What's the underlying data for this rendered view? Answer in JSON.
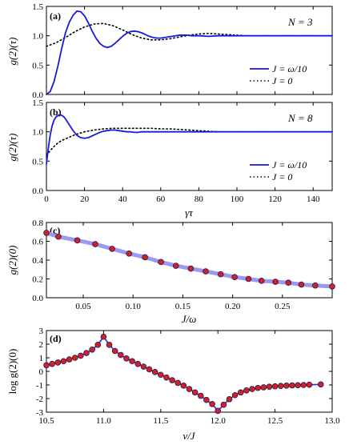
{
  "chart_data": [
    {
      "type": "line",
      "panel_label": "(a)",
      "annotation": "N = 3",
      "ylabel": "g(2)(τ)",
      "xlim": [
        0,
        150
      ],
      "ylim": [
        0,
        1.5
      ],
      "xticks": [
        0,
        20,
        40,
        60,
        80,
        100,
        120,
        140
      ],
      "yticks": [
        0.0,
        0.5,
        1.0,
        1.5
      ],
      "ytick_labels": [
        "0.0",
        "0.5",
        "1.0",
        "1.5"
      ],
      "legend_position": "lower-right",
      "series": [
        {
          "name": "J = ω/10",
          "color": "#1a1adb",
          "style": "solid",
          "x": [
            0,
            2,
            4,
            6,
            8,
            10,
            12,
            14,
            16,
            18,
            20,
            22,
            24,
            26,
            28,
            30,
            32,
            34,
            36,
            38,
            40,
            42,
            44,
            46,
            48,
            50,
            52,
            54,
            56,
            58,
            60,
            62,
            64,
            66,
            68,
            70,
            72,
            74,
            76,
            78,
            80,
            85,
            90,
            95,
            100,
            110,
            120,
            130,
            140,
            150
          ],
          "y": [
            0,
            0.05,
            0.22,
            0.48,
            0.78,
            1.05,
            1.23,
            1.35,
            1.42,
            1.41,
            1.34,
            1.22,
            1.08,
            0.96,
            0.87,
            0.82,
            0.8,
            0.82,
            0.87,
            0.93,
            0.99,
            1.04,
            1.07,
            1.08,
            1.07,
            1.05,
            1.02,
            0.99,
            0.97,
            0.96,
            0.96,
            0.97,
            0.98,
            0.99,
            1.0,
            1.01,
            1.01,
            1.01,
            1.0,
            1.0,
            1.0,
            0.99,
            1.0,
            1.0,
            1.0,
            1.0,
            1.0,
            1.0,
            1.0,
            1.0
          ]
        },
        {
          "name": "J = 0",
          "color": "#000000",
          "style": "dotted",
          "x": [
            0,
            5,
            10,
            15,
            20,
            25,
            30,
            35,
            40,
            45,
            50,
            55,
            60,
            65,
            70,
            75,
            80,
            85,
            90,
            95,
            100,
            105,
            110,
            120,
            130,
            140,
            150
          ],
          "y": [
            0.82,
            0.88,
            0.97,
            1.07,
            1.15,
            1.2,
            1.21,
            1.17,
            1.1,
            1.02,
            0.96,
            0.93,
            0.93,
            0.95,
            0.98,
            1.01,
            1.03,
            1.04,
            1.03,
            1.02,
            1.01,
            1.0,
            1.0,
            1.0,
            1.0,
            1.0,
            1.0
          ]
        }
      ]
    },
    {
      "type": "line",
      "panel_label": "(b)",
      "annotation": "N = 8",
      "ylabel": "g(2)(τ)",
      "xlabel": "γτ",
      "xlim": [
        0,
        150
      ],
      "ylim": [
        0,
        1.5
      ],
      "xticks": [
        0,
        20,
        40,
        60,
        80,
        100,
        120,
        140
      ],
      "yticks": [
        0.0,
        0.5,
        1.0,
        1.5
      ],
      "ytick_labels": [
        "0.0",
        "0.5",
        "1.0",
        "1.5"
      ],
      "legend_position": "lower-right",
      "series": [
        {
          "name": "J = ω/10",
          "color": "#1a1adb",
          "style": "solid",
          "x": [
            0,
            1,
            2,
            3,
            4,
            5,
            6,
            7,
            8,
            9,
            10,
            12,
            14,
            16,
            18,
            20,
            22,
            24,
            26,
            28,
            30,
            32,
            34,
            36,
            38,
            40,
            42,
            44,
            46,
            48,
            50,
            55,
            60,
            65,
            70,
            80,
            90,
            100,
            110,
            120,
            130,
            140,
            150
          ],
          "y": [
            0.45,
            0.72,
            0.95,
            1.1,
            1.2,
            1.25,
            1.28,
            1.29,
            1.28,
            1.26,
            1.22,
            1.12,
            1.02,
            0.94,
            0.9,
            0.89,
            0.9,
            0.93,
            0.96,
            0.99,
            1.01,
            1.02,
            1.03,
            1.03,
            1.02,
            1.01,
            1.0,
            1.0,
            0.99,
            0.99,
            1.0,
            1.0,
            1.0,
            1.0,
            1.0,
            1.0,
            1.0,
            1.0,
            1.0,
            1.0,
            1.0,
            1.0,
            1.0
          ]
        },
        {
          "name": "J = 0",
          "color": "#000000",
          "style": "dotted",
          "x": [
            0,
            2,
            4,
            6,
            8,
            10,
            15,
            20,
            25,
            30,
            35,
            40,
            45,
            50,
            55,
            60,
            65,
            70,
            75,
            80,
            85,
            90,
            95,
            100,
            110,
            120,
            130,
            140,
            150
          ],
          "y": [
            0.6,
            0.68,
            0.75,
            0.81,
            0.85,
            0.88,
            0.95,
            1.0,
            1.03,
            1.05,
            1.06,
            1.06,
            1.06,
            1.06,
            1.06,
            1.05,
            1.05,
            1.04,
            1.03,
            1.02,
            1.01,
            1.0,
            1.0,
            1.0,
            1.0,
            1.0,
            1.0,
            1.0,
            1.0
          ]
        }
      ]
    },
    {
      "type": "line",
      "panel_label": "(c)",
      "ylabel": "g(2)(0)",
      "xlabel": "J/ω",
      "xlim": [
        0.013,
        0.3
      ],
      "ylim": [
        0,
        0.8
      ],
      "xticks": [
        0.05,
        0.1,
        0.15,
        0.2,
        0.25
      ],
      "xtick_labels": [
        "0.05",
        "0.10",
        "0.15",
        "0.20",
        "0.25"
      ],
      "yticks": [
        0.0,
        0.2,
        0.4,
        0.6,
        0.8
      ],
      "ytick_labels": [
        "0.0",
        "0.2",
        "0.4",
        "0.6",
        "0.8"
      ],
      "line_color": "#9a9af0",
      "marker_fill": "#d62020",
      "marker_edge": "#1a1a60",
      "x": [
        0.013,
        0.025,
        0.044,
        0.062,
        0.079,
        0.096,
        0.112,
        0.128,
        0.143,
        0.158,
        0.173,
        0.188,
        0.202,
        0.216,
        0.229,
        0.243,
        0.256,
        0.269,
        0.283,
        0.3
      ],
      "y": [
        0.69,
        0.65,
        0.61,
        0.57,
        0.52,
        0.47,
        0.43,
        0.38,
        0.34,
        0.31,
        0.28,
        0.25,
        0.22,
        0.2,
        0.18,
        0.17,
        0.16,
        0.14,
        0.13,
        0.12
      ]
    },
    {
      "type": "line",
      "panel_label": "(d)",
      "ylabel": "log g(2)(0)",
      "xlabel": "ν/J",
      "xlim": [
        10.5,
        13.0
      ],
      "ylim": [
        -3,
        3
      ],
      "xticks": [
        10.5,
        11.0,
        11.5,
        12.0,
        12.5,
        13.0
      ],
      "xtick_labels": [
        "10.5",
        "11.0",
        "11.5",
        "12.0",
        "12.5",
        "13.0"
      ],
      "yticks": [
        -3,
        -2,
        -1,
        0,
        1,
        2,
        3
      ],
      "ytick_labels": [
        "-3",
        "-2",
        "-1",
        "0",
        "1",
        "2",
        "3"
      ],
      "line_color": "#2a2ad8",
      "marker_fill": "#d62020",
      "marker_edge": "#1a1a60",
      "x": [
        10.5,
        10.55,
        10.6,
        10.65,
        10.7,
        10.75,
        10.8,
        10.85,
        10.9,
        10.95,
        11.0,
        11.05,
        11.1,
        11.15,
        11.2,
        11.25,
        11.3,
        11.35,
        11.4,
        11.45,
        11.5,
        11.55,
        11.6,
        11.65,
        11.7,
        11.75,
        11.8,
        11.85,
        11.9,
        11.95,
        12.0,
        12.05,
        12.1,
        12.15,
        12.2,
        12.25,
        12.3,
        12.35,
        12.4,
        12.45,
        12.5,
        12.55,
        12.6,
        12.65,
        12.7,
        12.75,
        12.8,
        12.9
      ],
      "y": [
        0.45,
        0.55,
        0.65,
        0.75,
        0.88,
        1.0,
        1.15,
        1.35,
        1.6,
        1.95,
        2.55,
        1.95,
        1.5,
        1.2,
        0.95,
        0.75,
        0.55,
        0.35,
        0.15,
        -0.05,
        -0.25,
        -0.45,
        -0.65,
        -0.85,
        -1.05,
        -1.3,
        -1.55,
        -1.8,
        -2.1,
        -2.4,
        -2.9,
        -2.45,
        -2.05,
        -1.75,
        -1.55,
        -1.4,
        -1.3,
        -1.22,
        -1.17,
        -1.13,
        -1.1,
        -1.07,
        -1.05,
        -1.03,
        -1.02,
        -1.0,
        -0.98,
        -0.96
      ]
    }
  ]
}
